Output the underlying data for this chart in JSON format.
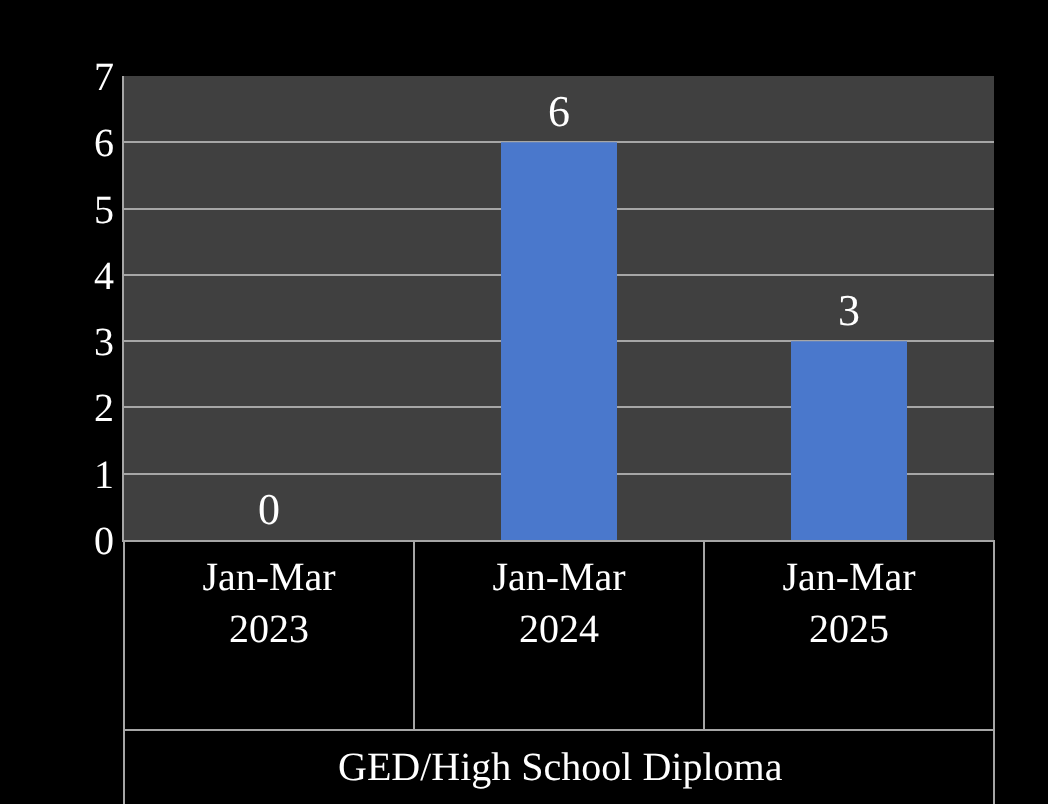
{
  "chart_data": {
    "type": "bar",
    "categories": [
      "Jan-Mar\n2023",
      "Jan-Mar\n2024",
      "Jan-Mar\n2025"
    ],
    "values": [
      0,
      6,
      3
    ],
    "color": "#4a78cc",
    "xlabel": "GED/High School Diploma",
    "ylim": [
      0,
      7
    ],
    "yticks": [
      0,
      1,
      2,
      3,
      4,
      5,
      6,
      7
    ],
    "grid": "y",
    "data_labels": true,
    "legend": false
  }
}
